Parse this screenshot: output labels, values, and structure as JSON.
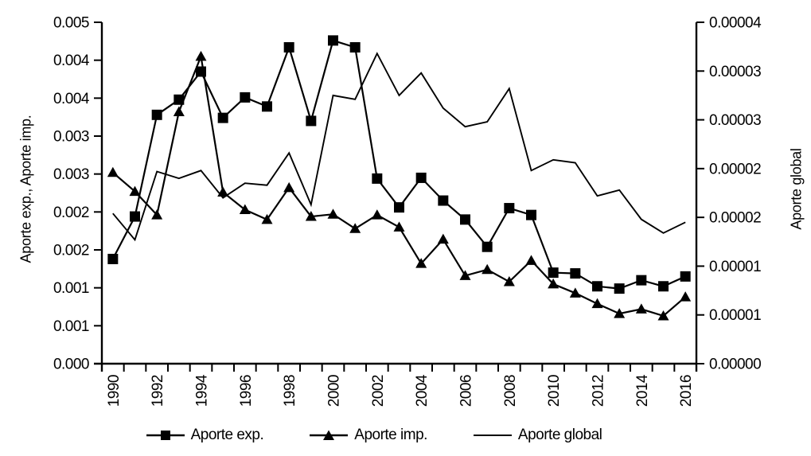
{
  "figure": {
    "left_axis_title": "Aporte exp., Aporte imp.",
    "right_axis_title": "Aporte global"
  },
  "legend": {
    "items": [
      {
        "label": "Aporte exp.",
        "marker": "square-on-line"
      },
      {
        "label": "Aporte imp.",
        "marker": "triangle-on-line"
      },
      {
        "label": "Aporte global",
        "marker": "plain-line"
      }
    ]
  },
  "chart_data": {
    "type": "line",
    "title": "",
    "x": [
      1990,
      1991,
      1992,
      1993,
      1994,
      1995,
      1996,
      1997,
      1998,
      1999,
      2000,
      2001,
      2002,
      2003,
      2004,
      2005,
      2006,
      2007,
      2008,
      2009,
      2010,
      2011,
      2012,
      2013,
      2014,
      2015,
      2016
    ],
    "x_tick_labels": [
      "1990",
      "1992",
      "1994",
      "1996",
      "1998",
      "2000",
      "2002",
      "2004",
      "2006",
      "2008",
      "2010",
      "2012",
      "2014",
      "2016"
    ],
    "grid": false,
    "legend_position": "bottom",
    "left_axis": {
      "title": "Aporte exp., Aporte imp.",
      "range": [
        0,
        0.0045
      ],
      "tick_step": 0.0005,
      "tick_labels_bottom_to_top": [
        "0.000",
        "0.001",
        "0.001",
        "0.002",
        "0.002",
        "0.003",
        "0.003",
        "0.004",
        "0.004",
        "0.005"
      ]
    },
    "right_axis": {
      "title": "Aporte global",
      "range": [
        0,
        3.5e-05
      ],
      "tick_step": 5e-06,
      "tick_labels_bottom_to_top": [
        "0.00000",
        "0.00001",
        "0.00001",
        "0.00002",
        "0.00002",
        "0.00003",
        "0.00003",
        "0.00004"
      ]
    },
    "series": [
      {
        "name": "Aporte exp.",
        "axis": "left",
        "marker": "square",
        "color": "#000000",
        "values": [
          0.00138,
          0.00194,
          0.00328,
          0.00348,
          0.00385,
          0.00324,
          0.00351,
          0.00339,
          0.00417,
          0.0032,
          0.00426,
          0.00417,
          0.00244,
          0.00206,
          0.00245,
          0.00215,
          0.0019,
          0.00154,
          0.00205,
          0.00196,
          0.0012,
          0.00119,
          0.00102,
          0.00099,
          0.0011,
          0.00102,
          0.00115
        ]
      },
      {
        "name": "Aporte imp.",
        "axis": "left",
        "marker": "triangle",
        "color": "#000000",
        "values": [
          0.00252,
          0.00227,
          0.00196,
          0.00332,
          0.00405,
          0.00226,
          0.00203,
          0.0019,
          0.00232,
          0.00194,
          0.00197,
          0.00178,
          0.00196,
          0.0018,
          0.00132,
          0.00164,
          0.00116,
          0.00124,
          0.00108,
          0.00136,
          0.00105,
          0.00093,
          0.00079,
          0.00066,
          0.00072,
          0.00063,
          0.00088
        ]
      },
      {
        "name": "Aporte global",
        "axis": "right",
        "marker": "none",
        "color": "#000000",
        "values": [
          1.54e-05,
          1.27e-05,
          1.97e-05,
          1.9e-05,
          1.98e-05,
          1.7e-05,
          1.85e-05,
          1.83e-05,
          2.16e-05,
          1.63e-05,
          2.75e-05,
          2.71e-05,
          3.18e-05,
          2.75e-05,
          2.98e-05,
          2.62e-05,
          2.43e-05,
          2.48e-05,
          2.82e-05,
          1.98e-05,
          2.09e-05,
          2.06e-05,
          1.72e-05,
          1.78e-05,
          1.48e-05,
          1.34e-05,
          1.45e-05
        ]
      }
    ]
  }
}
